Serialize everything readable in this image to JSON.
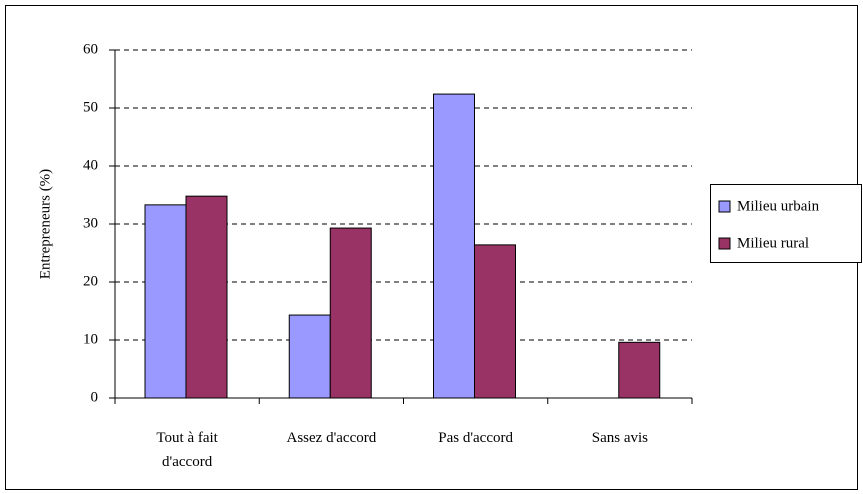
{
  "chart_data": {
    "type": "bar",
    "y_label": "Entrepreneurs (%)",
    "categories": [
      "Tout à fait d'accord",
      "Assez d'accord",
      "Pas d'accord",
      "Sans avis"
    ],
    "series": [
      {
        "name": "Milieu urbain",
        "color": "#9999ff",
        "values": [
          33.3,
          14.3,
          52.4,
          0
        ]
      },
      {
        "name": "Milieu rural",
        "color": "#993366",
        "values": [
          34.8,
          29.3,
          26.4,
          9.6
        ]
      }
    ],
    "ylim": [
      0,
      60
    ],
    "yticks": [
      0,
      10,
      20,
      30,
      40,
      50,
      60
    ],
    "grid": true,
    "legend": "right"
  }
}
